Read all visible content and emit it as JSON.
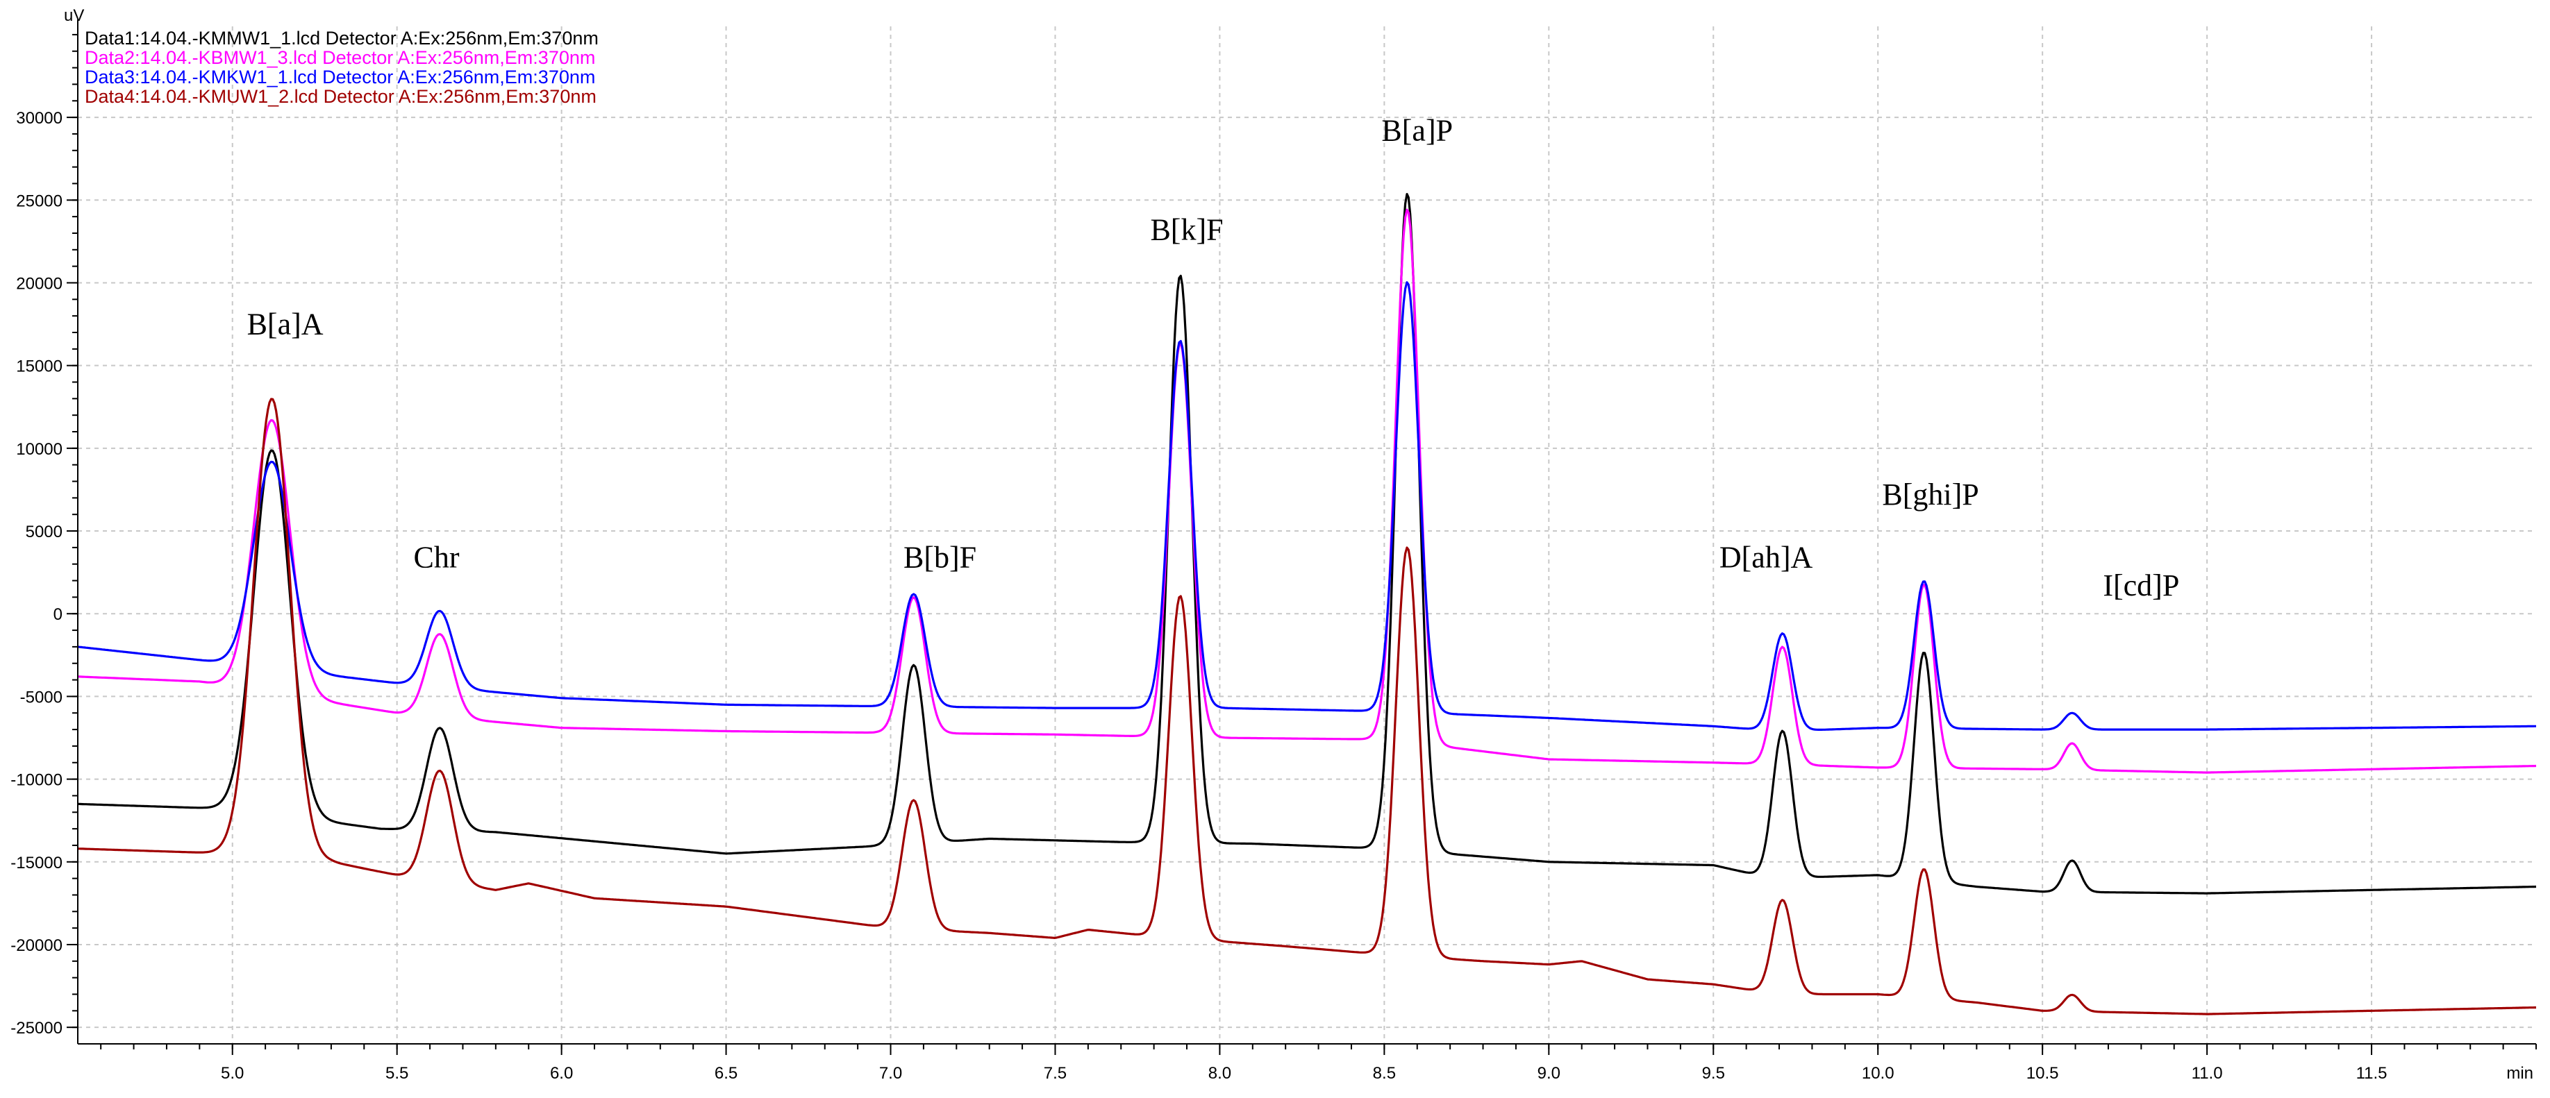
{
  "chart_data": {
    "type": "line",
    "title": "",
    "xlabel": "min",
    "ylabel": "uV",
    "xlim": [
      4.53,
      12.0
    ],
    "ylim": [
      -26000,
      35500
    ],
    "xticks": [
      5.0,
      5.5,
      6.0,
      6.5,
      7.0,
      7.5,
      8.0,
      8.5,
      9.0,
      9.5,
      10.0,
      10.5,
      11.0,
      11.5
    ],
    "xtick_labels": [
      "5.0",
      "5.5",
      "6.0",
      "6.5",
      "7.0",
      "7.5",
      "8.0",
      "8.5",
      "9.0",
      "9.5",
      "10.0",
      "10.5",
      "11.0",
      "11.5"
    ],
    "yticks": [
      -25000,
      -20000,
      -15000,
      -10000,
      -5000,
      0,
      5000,
      10000,
      15000,
      20000,
      25000,
      30000
    ],
    "ytick_labels": [
      "-25000",
      "-20000",
      "-15000",
      "-10000",
      "-5000",
      "0",
      "5000",
      "10000",
      "15000",
      "20000",
      "25000",
      "30000"
    ],
    "grid": true,
    "legend_position": "top-left",
    "series": [
      {
        "name": "Data1:14.04.-KMMW1_1.lcd Detector A:Ex:256nm,Em:370nm",
        "color": "#000000",
        "baseline": [
          [
            4.53,
            -11500
          ],
          [
            5.0,
            -11800
          ],
          [
            5.45,
            -13000
          ],
          [
            5.8,
            -13200
          ],
          [
            6.5,
            -14500
          ],
          [
            7.0,
            -14000
          ],
          [
            7.3,
            -13600
          ],
          [
            7.7,
            -13800
          ],
          [
            8.1,
            -13900
          ],
          [
            8.5,
            -14200
          ],
          [
            9.0,
            -15000
          ],
          [
            9.5,
            -15200
          ],
          [
            9.68,
            -16000
          ],
          [
            10.0,
            -15800
          ],
          [
            10.3,
            -16500
          ],
          [
            10.5,
            -16800
          ],
          [
            11.0,
            -16900
          ],
          [
            12.0,
            -16500
          ]
        ],
        "peaks": [
          [
            5.12,
            22000,
            0.055
          ],
          [
            5.63,
            6200,
            0.04
          ],
          [
            7.07,
            10800,
            0.035
          ],
          [
            7.88,
            34300,
            0.035
          ],
          [
            8.57,
            39700,
            0.035
          ],
          [
            9.71,
            8900,
            0.03
          ],
          [
            10.14,
            13800,
            0.03
          ],
          [
            10.59,
            1900,
            0.025
          ]
        ]
      },
      {
        "name": "Data2:14.04.-KBMW1_3.lcd Detector A:Ex:256nm,Em:370nm",
        "color": "#ff00ff",
        "baseline": [
          [
            4.53,
            -3800
          ],
          [
            4.9,
            -4100
          ],
          [
            5.5,
            -6000
          ],
          [
            6.0,
            -6900
          ],
          [
            6.5,
            -7100
          ],
          [
            7.0,
            -7200
          ],
          [
            7.5,
            -7300
          ],
          [
            8.0,
            -7500
          ],
          [
            8.5,
            -7600
          ],
          [
            9.0,
            -8800
          ],
          [
            9.5,
            -9000
          ],
          [
            9.7,
            -9100
          ],
          [
            10.0,
            -9300
          ],
          [
            10.5,
            -9400
          ],
          [
            11.0,
            -9600
          ],
          [
            12.0,
            -9200
          ]
        ],
        "peaks": [
          [
            5.12,
            16500,
            0.055
          ],
          [
            5.63,
            5000,
            0.04
          ],
          [
            7.07,
            8200,
            0.035
          ],
          [
            7.88,
            23800,
            0.035
          ],
          [
            8.57,
            32200,
            0.035
          ],
          [
            9.71,
            7100,
            0.03
          ],
          [
            10.14,
            11100,
            0.03
          ],
          [
            10.59,
            1600,
            0.025
          ]
        ]
      },
      {
        "name": "Data3:14.04.-KMKW1_1.lcd Detector A:Ex:256nm,Em:370nm",
        "color": "#0000ff",
        "baseline": [
          [
            4.53,
            -2000
          ],
          [
            4.9,
            -2800
          ],
          [
            5.5,
            -4200
          ],
          [
            6.0,
            -5100
          ],
          [
            6.5,
            -5500
          ],
          [
            7.0,
            -5600
          ],
          [
            7.5,
            -5700
          ],
          [
            8.0,
            -5700
          ],
          [
            8.5,
            -5900
          ],
          [
            9.0,
            -6300
          ],
          [
            9.5,
            -6800
          ],
          [
            9.7,
            -7100
          ],
          [
            10.0,
            -6900
          ],
          [
            10.5,
            -7000
          ],
          [
            11.0,
            -7000
          ],
          [
            12.0,
            -6800
          ]
        ],
        "peaks": [
          [
            5.12,
            12500,
            0.055
          ],
          [
            5.63,
            4600,
            0.04
          ],
          [
            7.07,
            6800,
            0.035
          ],
          [
            7.88,
            22200,
            0.035
          ],
          [
            8.57,
            26000,
            0.035
          ],
          [
            9.71,
            5900,
            0.03
          ],
          [
            10.14,
            8900,
            0.03
          ],
          [
            10.59,
            1000,
            0.025
          ]
        ]
      },
      {
        "name": "Data4:14.04.-KMUW1_2.lcd Detector A:Ex:256nm,Em:370nm",
        "color": "#a00000",
        "baseline": [
          [
            4.53,
            -14200
          ],
          [
            5.0,
            -14500
          ],
          [
            5.3,
            -15000
          ],
          [
            5.5,
            -15800
          ],
          [
            5.8,
            -16700
          ],
          [
            5.9,
            -16300
          ],
          [
            6.1,
            -17200
          ],
          [
            6.5,
            -17700
          ],
          [
            7.0,
            -19000
          ],
          [
            7.3,
            -19300
          ],
          [
            7.5,
            -19600
          ],
          [
            7.6,
            -19100
          ],
          [
            7.8,
            -19500
          ],
          [
            8.2,
            -20100
          ],
          [
            8.5,
            -20600
          ],
          [
            8.8,
            -21000
          ],
          [
            9.0,
            -21200
          ],
          [
            9.1,
            -21000
          ],
          [
            9.3,
            -22100
          ],
          [
            9.5,
            -22400
          ],
          [
            9.7,
            -23000
          ],
          [
            10.0,
            -23000
          ],
          [
            10.3,
            -23500
          ],
          [
            10.5,
            -24000
          ],
          [
            11.0,
            -24200
          ],
          [
            12.0,
            -23800
          ]
        ],
        "peaks": [
          [
            5.12,
            27700,
            0.055
          ],
          [
            5.63,
            6700,
            0.04
          ],
          [
            7.07,
            7800,
            0.035
          ],
          [
            7.88,
            20700,
            0.035
          ],
          [
            8.57,
            24700,
            0.035
          ],
          [
            9.71,
            5700,
            0.03
          ],
          [
            10.14,
            7800,
            0.03
          ],
          [
            10.59,
            1000,
            0.025
          ]
        ]
      }
    ],
    "annotations": [
      {
        "text": "B[a]A",
        "x": 5.16,
        "y": 16900
      },
      {
        "text": "Chr",
        "x": 5.62,
        "y": 2800
      },
      {
        "text": "B[b]F",
        "x": 7.15,
        "y": 2800
      },
      {
        "text": "B[k]F",
        "x": 7.9,
        "y": 22600
      },
      {
        "text": "B[a]P",
        "x": 8.6,
        "y": 28600
      },
      {
        "text": "D[ah]A",
        "x": 9.66,
        "y": 2800
      },
      {
        "text": "B[ghi]P",
        "x": 10.16,
        "y": 6600
      },
      {
        "text": "I[cd]P",
        "x": 10.8,
        "y": 1100
      }
    ]
  }
}
